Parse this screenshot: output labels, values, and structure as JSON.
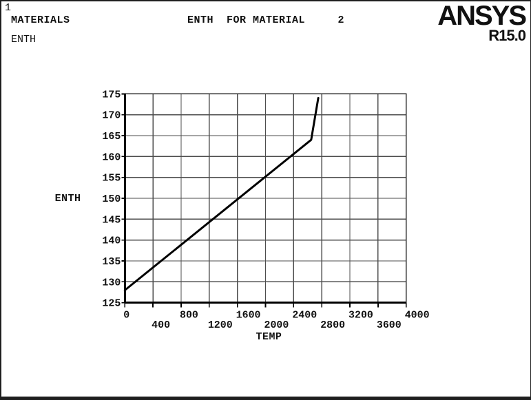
{
  "window": {
    "number": "1",
    "background_color": "#ffffff",
    "border_color": "#1f1f1f"
  },
  "header": {
    "material_list_label": "MATERIALS",
    "property_label": "ENTH",
    "title": "ENTH  FOR MATERIAL     2"
  },
  "logo": {
    "brand": "ANSYS",
    "version": "R15.0"
  },
  "chart_data": {
    "type": "line",
    "title": "ENTH FOR MATERIAL 2",
    "xlabel": "TEMP",
    "ylabel": "ENTH",
    "xlim": [
      0,
      4000
    ],
    "ylim": [
      125,
      175
    ],
    "xticks": [
      0,
      400,
      800,
      1200,
      1600,
      2000,
      2400,
      2800,
      3200,
      3600,
      4000
    ],
    "yticks": [
      125,
      130,
      135,
      140,
      145,
      150,
      155,
      160,
      165,
      170,
      175
    ],
    "x_tick_labels_staggered": true,
    "grid": true,
    "legend": "none",
    "line_color": "#000000",
    "grid_color": "#4d4d4d",
    "series": [
      {
        "name": "ENTH",
        "points": [
          [
            0,
            128
          ],
          [
            2650,
            164
          ],
          [
            2750,
            174
          ]
        ]
      }
    ]
  }
}
